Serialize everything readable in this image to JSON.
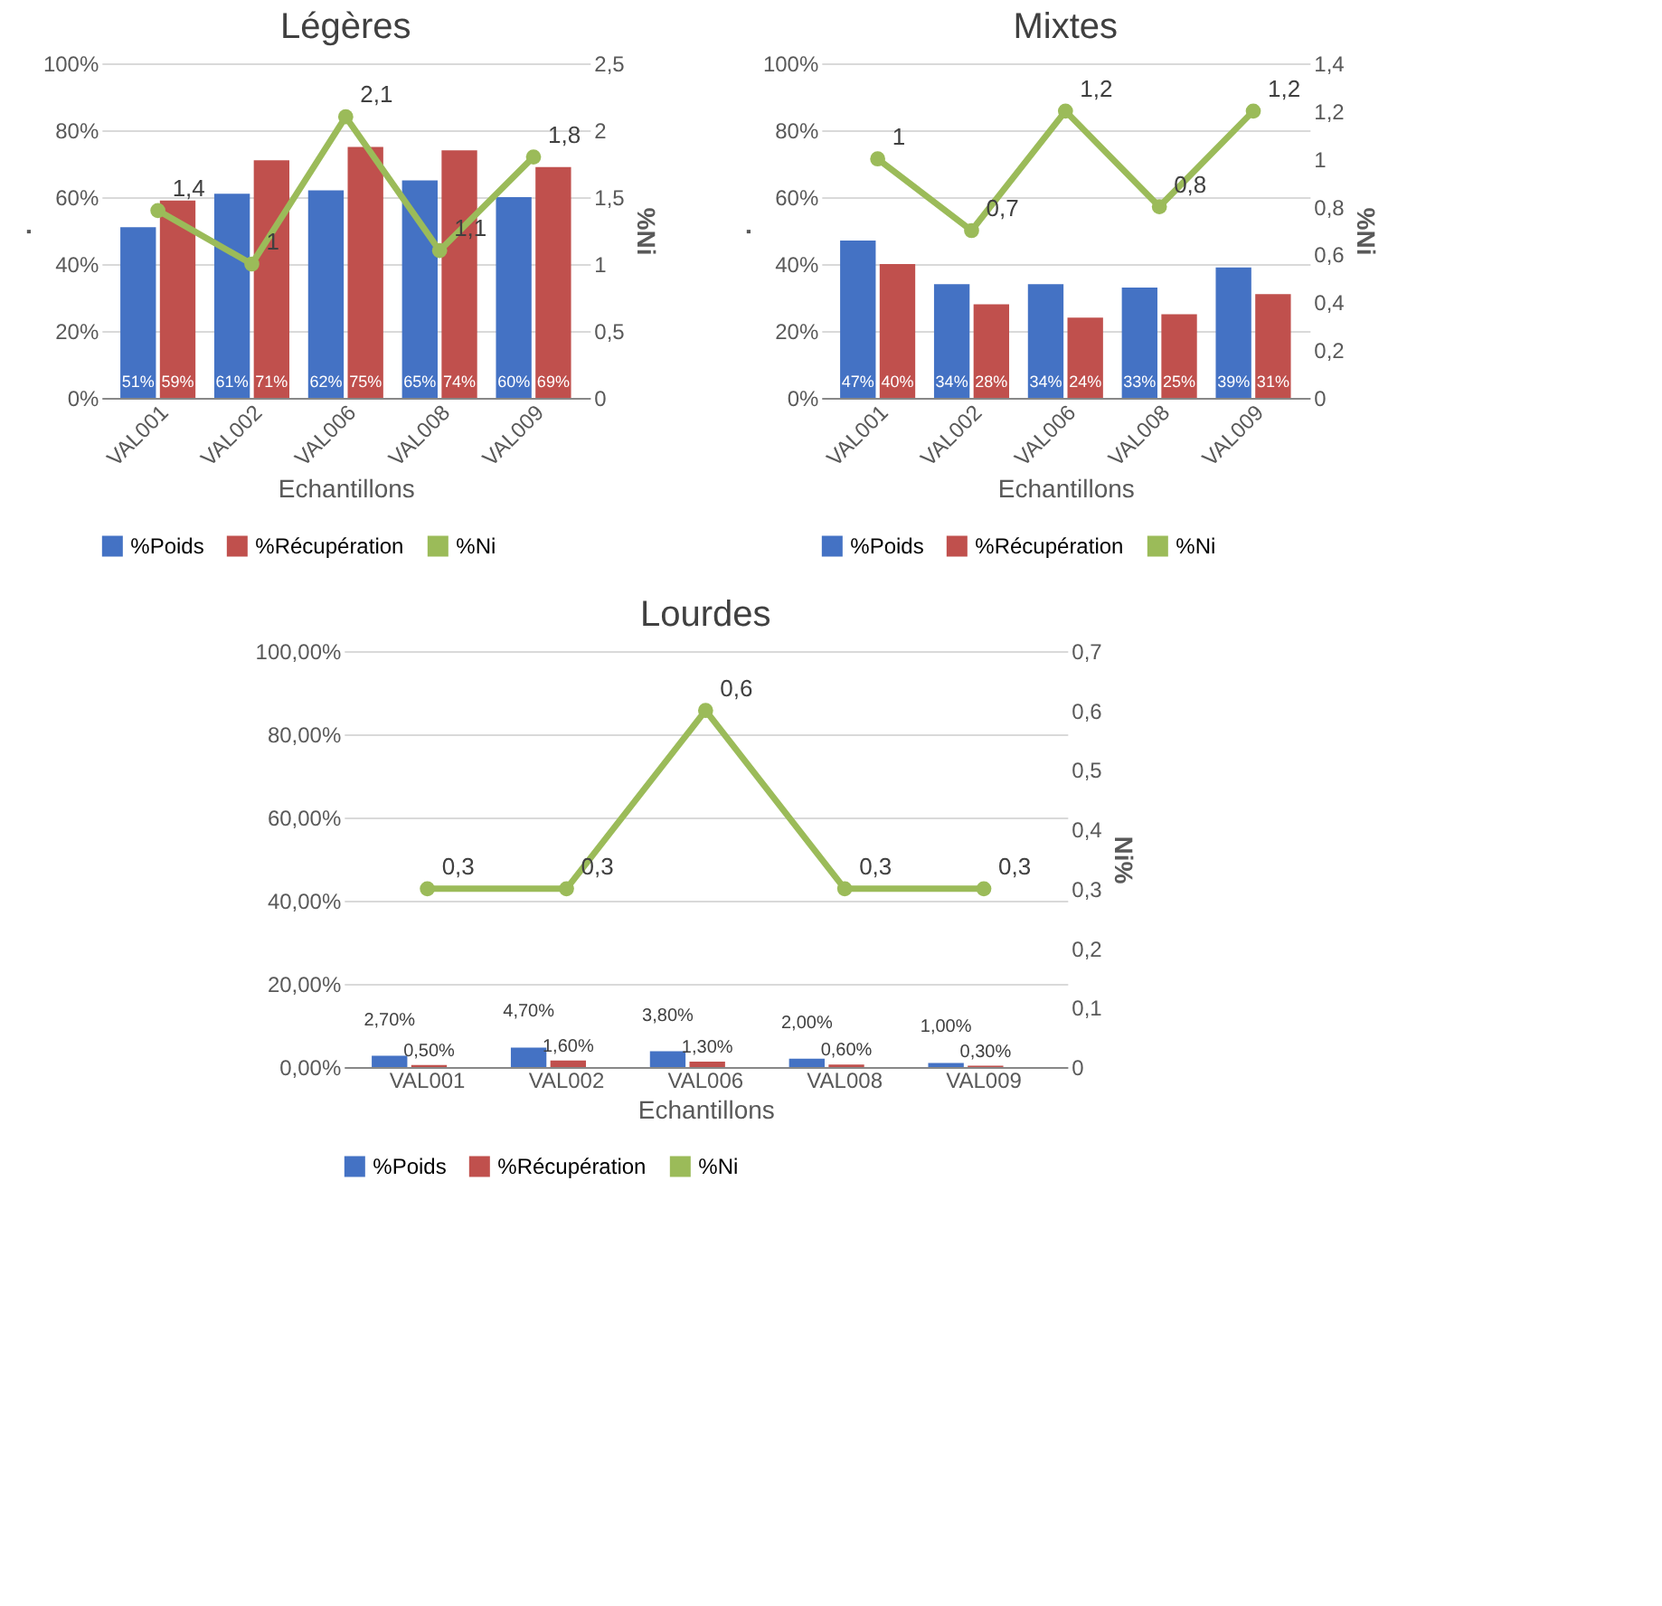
{
  "chart_data": [
    {
      "type": "bar",
      "title": "Légères",
      "xlabel": "Echantillons",
      "ylabel": ".",
      "y2label": "%Ni",
      "categories": [
        "VAL001",
        "VAL002",
        "VAL006",
        "VAL008",
        "VAL009"
      ],
      "series": [
        {
          "name": "%Poids",
          "color": "#4472c4",
          "values": [
            51,
            61,
            62,
            65,
            60
          ],
          "value_labels": [
            "51%",
            "61%",
            "62%",
            "65%",
            "60%"
          ]
        },
        {
          "name": "%Récupération",
          "color": "#c0504d",
          "values": [
            59,
            71,
            75,
            74,
            69
          ],
          "value_labels": [
            "59%",
            "71%",
            "75%",
            "74%",
            "69%"
          ]
        },
        {
          "name": "%Ni",
          "type": "line",
          "axis": "y2",
          "color": "#9bbb59",
          "values": [
            1.4,
            1,
            2.1,
            1.1,
            1.8
          ],
          "value_labels": [
            "1,4",
            "1",
            "2,1",
            "1,1",
            "1,8"
          ]
        }
      ],
      "ylim": [
        0,
        100
      ],
      "yticks": [
        {
          "value": 0,
          "label": "0%"
        },
        {
          "value": 20,
          "label": "20%"
        },
        {
          "value": 40,
          "label": "40%"
        },
        {
          "value": 60,
          "label": "60%"
        },
        {
          "value": 80,
          "label": "80%"
        },
        {
          "value": 100,
          "label": "100%"
        }
      ],
      "y2lim": [
        0,
        2.5
      ],
      "y2ticks": [
        0,
        {
          "value": 0.5,
          "label": "0,5"
        },
        1,
        {
          "value": 1.5,
          "label": "1,5"
        },
        2,
        {
          "value": 2.5,
          "label": "2,5"
        }
      ],
      "grid": "y",
      "legend": "bottom",
      "marker": "circle"
    },
    {
      "type": "bar",
      "title": "Mixtes",
      "xlabel": "Echantillons",
      "ylabel": ".",
      "y2label": "%Ni",
      "categories": [
        "VAL001",
        "VAL002",
        "VAL006",
        "VAL008",
        "VAL009"
      ],
      "series": [
        {
          "name": "%Poids",
          "color": "#4472c4",
          "values": [
            47,
            34,
            34,
            33,
            39
          ],
          "value_labels": [
            "47%",
            "34%",
            "34%",
            "33%",
            "39%"
          ]
        },
        {
          "name": "%Récupération",
          "color": "#c0504d",
          "values": [
            40,
            28,
            24,
            25,
            31
          ],
          "value_labels": [
            "40%",
            "28%",
            "24%",
            "25%",
            "31%"
          ]
        },
        {
          "name": "%Ni",
          "type": "line",
          "axis": "y2",
          "color": "#9bbb59",
          "values": [
            1,
            0.7,
            1.2,
            0.8,
            1.2
          ],
          "value_labels": [
            "1",
            "0,7",
            "1,2",
            "0,8",
            "1,2"
          ]
        }
      ],
      "ylim": [
        0,
        100
      ],
      "yticks": [
        {
          "value": 0,
          "label": "0%"
        },
        {
          "value": 20,
          "label": "20%"
        },
        {
          "value": 40,
          "label": "40%"
        },
        {
          "value": 60,
          "label": "60%"
        },
        {
          "value": 80,
          "label": "80%"
        },
        {
          "value": 100,
          "label": "100%"
        }
      ],
      "y2lim": [
        0,
        1.4
      ],
      "y2ticks": [
        0,
        {
          "value": 0.2,
          "label": "0,2"
        },
        {
          "value": 0.4,
          "label": "0,4"
        },
        {
          "value": 0.6,
          "label": "0,6"
        },
        {
          "value": 0.8,
          "label": "0,8"
        },
        1,
        {
          "value": 1.2,
          "label": "1,2"
        },
        {
          "value": 1.4,
          "label": "1,4"
        }
      ],
      "grid": "y",
      "legend": "bottom",
      "marker": "circle"
    },
    {
      "type": "bar",
      "title": "Lourdes",
      "xlabel": "Echantillons",
      "y2label": "Ni%",
      "categories": [
        "VAL001",
        "VAL002",
        "VAL006",
        "VAL008",
        "VAL009"
      ],
      "series": [
        {
          "name": "%Poids",
          "color": "#4472c4",
          "values": [
            2.7,
            4.7,
            3.8,
            2,
            1
          ],
          "value_labels": [
            "2,70%",
            "4,70%",
            "3,80%",
            "2,00%",
            "1,00%"
          ]
        },
        {
          "name": "%Récupération",
          "color": "#c0504d",
          "values": [
            0.5,
            1.6,
            1.3,
            0.6,
            0.3
          ],
          "value_labels": [
            "0,50%",
            "1,60%",
            "1,30%",
            "0,60%",
            "0,30%"
          ]
        },
        {
          "name": "%Ni",
          "type": "line",
          "axis": "y2",
          "color": "#9bbb59",
          "values": [
            0.3,
            0.3,
            0.6,
            0.3,
            0.3
          ],
          "value_labels": [
            "0,3",
            "0,3",
            "0,6",
            "0,3",
            "0,3"
          ]
        }
      ],
      "ylim": [
        0,
        100
      ],
      "yticks": [
        {
          "value": 0,
          "label": "0,00%"
        },
        {
          "value": 20,
          "label": "20,00%"
        },
        {
          "value": 40,
          "label": "40,00%"
        },
        {
          "value": 60,
          "label": "60,00%"
        },
        {
          "value": 80,
          "label": "80,00%"
        },
        {
          "value": 100,
          "label": "100,00%"
        }
      ],
      "y2lim": [
        0,
        0.7
      ],
      "y2ticks": [
        0,
        {
          "value": 0.1,
          "label": "0,1"
        },
        {
          "value": 0.2,
          "label": "0,2"
        },
        {
          "value": 0.3,
          "label": "0,3"
        },
        {
          "value": 0.4,
          "label": "0,4"
        },
        {
          "value": 0.5,
          "label": "0,5"
        },
        {
          "value": 0.6,
          "label": "0,6"
        },
        {
          "value": 0.7,
          "label": "0,7"
        }
      ],
      "grid": "y",
      "legend": "bottom",
      "marker": "circle"
    }
  ]
}
